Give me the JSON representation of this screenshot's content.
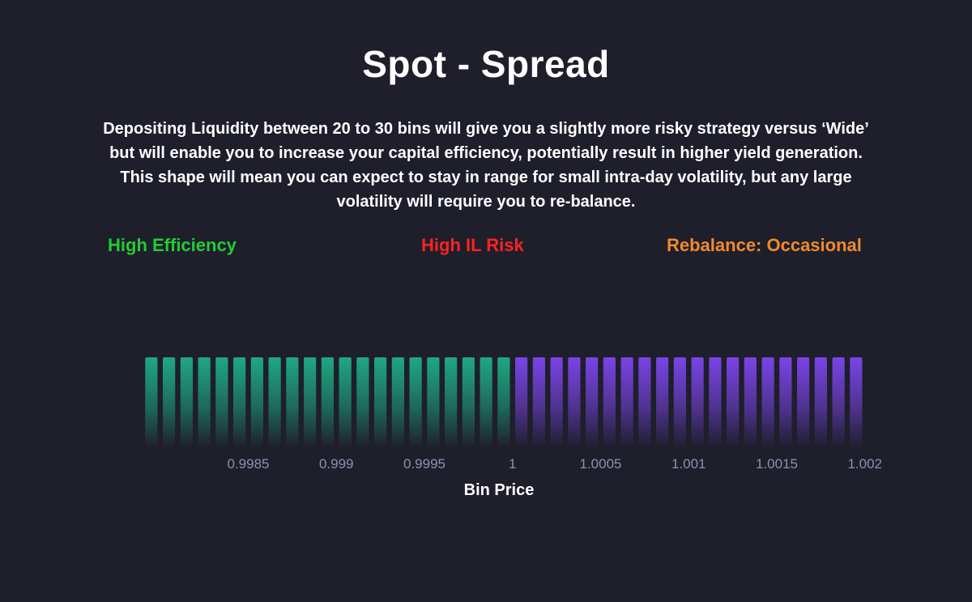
{
  "title": "Spot - Spread",
  "description": [
    "Depositing Liquidity between 20 to 30 bins will give you a slightly more risky strategy versus ‘Wide’",
    "but will enable you to increase your capital efficiency, potentially result in higher yield generation.",
    "This shape will mean you can expect to stay in range for small intra-day volatility, but any large",
    "volatility will require you to re-balance."
  ],
  "metrics": [
    {
      "label": "High Efficiency",
      "color": "#22cc33"
    },
    {
      "label": "High IL Risk",
      "color": "#ff2222"
    },
    {
      "label": "Rebalance: Occasional",
      "color": "#f08a2c"
    }
  ],
  "chart_data": {
    "type": "bar",
    "xlabel": "Bin Price",
    "ylabel": "",
    "grid": false,
    "bin_step": 0.0001,
    "x_range": [
      0.9979,
      1.0019
    ],
    "bins_below": 21,
    "bins_above": 20,
    "relative_height": 1,
    "colors": {
      "below": "#1fa882",
      "above": "#7a44e6"
    },
    "x_ticks": [
      0.9985,
      0.999,
      0.9995,
      1,
      1.0005,
      1.001,
      1.0015,
      1.002
    ],
    "x_tick_labels": [
      "0.9985",
      "0.999",
      "0.9995",
      "1",
      "1.0005",
      "1.001",
      "1.0015",
      "1.002"
    ]
  }
}
